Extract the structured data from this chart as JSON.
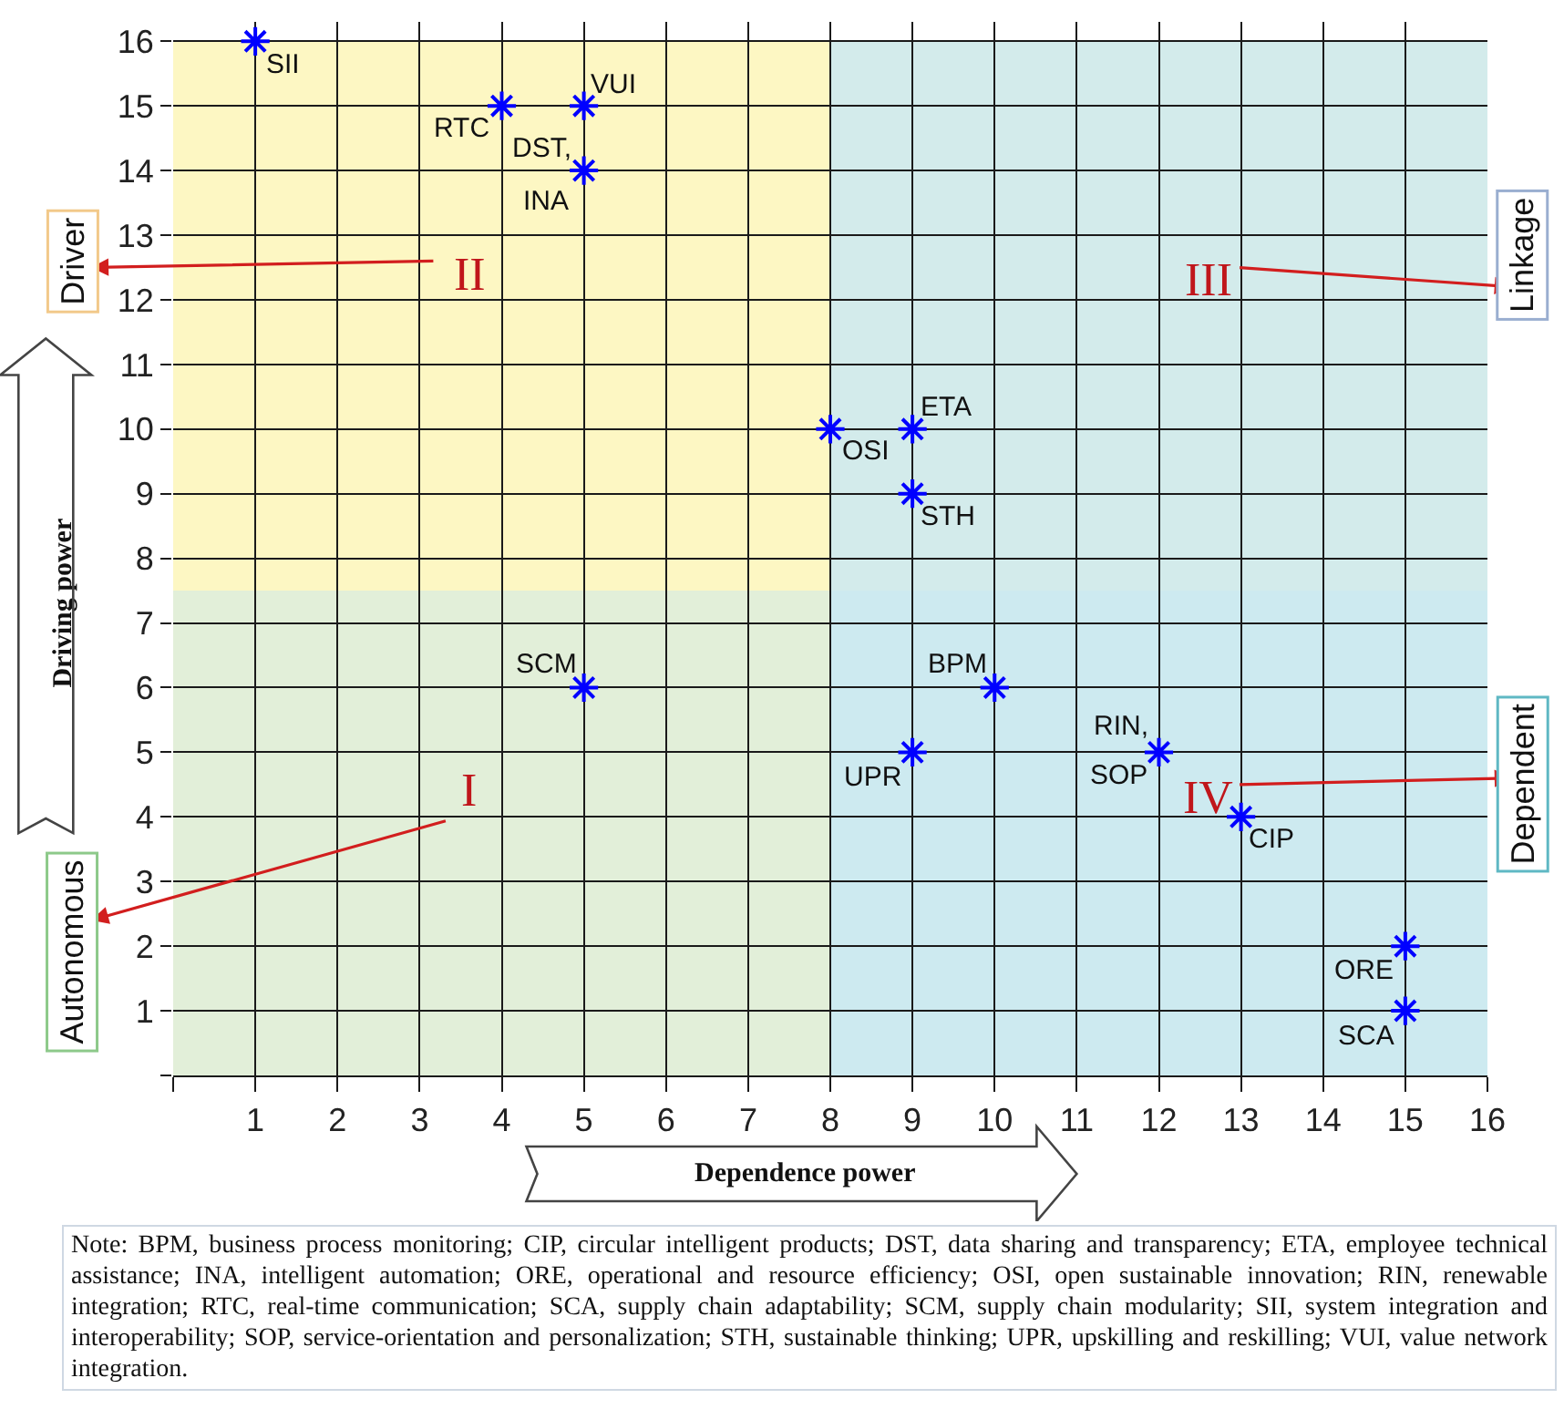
{
  "chart_data": {
    "type": "scatter",
    "xlabel": "Dependence power",
    "ylabel": "Driving power",
    "x": [
      1,
      4,
      5,
      5,
      8,
      9,
      9,
      5,
      10,
      9,
      12,
      13,
      15,
      15
    ],
    "values": [
      16,
      15,
      15,
      14,
      10,
      10,
      9,
      6,
      6,
      5,
      5,
      4,
      2,
      1
    ],
    "color": "#0000ff",
    "marker": "cross",
    "xlim": [
      0,
      16
    ],
    "ylim": [
      0,
      16.3
    ],
    "xticks": [
      {
        "value": 0,
        "label": null
      },
      1,
      2,
      3,
      4,
      5,
      6,
      7,
      8,
      9,
      10,
      11,
      12,
      13,
      14,
      15,
      16
    ],
    "yticks": [
      {
        "value": 0,
        "label": null
      },
      1,
      2,
      3,
      4,
      5,
      6,
      7,
      8,
      9,
      10,
      11,
      12,
      13,
      14,
      15,
      16
    ],
    "grid": true,
    "bands": [
      {
        "axis": "y",
        "from": 7.5,
        "to": 16,
        "color": "#fdf7c3"
      },
      {
        "axis": "y",
        "from": 0,
        "to": 7.5,
        "color": "#e2efd9"
      },
      {
        "axis": "x",
        "from": 8,
        "to": 16,
        "color": "#c6e8f6"
      }
    ],
    "annotations": [
      "I",
      "II",
      "III",
      "IV",
      "Autonomous",
      "Driver",
      "Linkage",
      "Dependent",
      {
        "text": "SII",
        "x": 1,
        "y": 16
      },
      {
        "text": "RTC",
        "x": 4,
        "y": 15
      },
      {
        "text": "VUI",
        "x": 5,
        "y": 15
      },
      {
        "text": "DST,",
        "x": 5,
        "y": 14
      },
      {
        "text": "INA",
        "x": 5,
        "y": 14
      },
      {
        "text": "OSI",
        "x": 8,
        "y": 10
      },
      {
        "text": "ETA",
        "x": 9,
        "y": 10
      },
      {
        "text": "STH",
        "x": 9,
        "y": 9
      },
      {
        "text": "SCM",
        "x": 5,
        "y": 6
      },
      {
        "text": "BPM",
        "x": 10,
        "y": 6
      },
      {
        "text": "UPR",
        "x": 9,
        "y": 5
      },
      {
        "text": "RIN,",
        "x": 12,
        "y": 5
      },
      {
        "text": "SOP",
        "x": 12,
        "y": 5
      },
      {
        "text": "CIP",
        "x": 13,
        "y": 4
      },
      {
        "text": "ORE",
        "x": 15,
        "y": 2
      },
      {
        "text": "SCA",
        "x": 15,
        "y": 1
      },
      "Note: BPM, business process monitoring; CIP, circular intelligent products; DST, data sharing and transparency; ETA, employee technical assistance; INA, intelligent automation; ORE, operational and resource efficiency; OSI, open sustainable innovation; RIN, renewable integration; RTC, real-time communication; SCA, supply chain adaptability; SCM, supply chain modularity; SII, system integration and interoperability; SOP, service-orientation and personalization; STH, sustainable thinking; UPR, upskilling and reskilling; VUI, value network integration."
    ]
  }
}
